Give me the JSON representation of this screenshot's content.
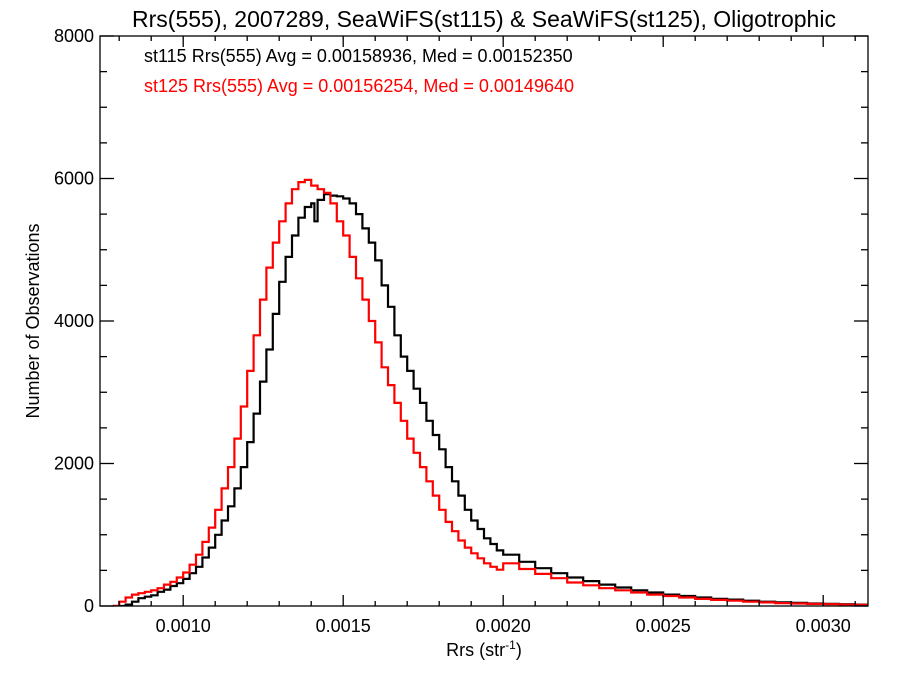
{
  "chart_data": {
    "type": "line",
    "title": "Rrs(555), 2007289, SeaWiFS(st115) & SeaWiFS(st125), Oligotrophic",
    "xlabel_main": "Rrs (str",
    "xlabel_sup": "-1",
    "xlabel_close": ")",
    "ylabel": "Number of Observations",
    "xlim": [
      0.00074,
      0.00314
    ],
    "ylim": [
      0,
      8000
    ],
    "xticks": [
      0.001,
      0.0015,
      0.002,
      0.0025,
      0.003
    ],
    "xtick_labels": [
      "0.0010",
      "0.0015",
      "0.0020",
      "0.0025",
      "0.0030"
    ],
    "yticks": [
      0,
      2000,
      4000,
      6000,
      8000
    ],
    "ytick_labels": [
      "0",
      "2000",
      "4000",
      "6000",
      "8000"
    ],
    "grid": false,
    "step": true,
    "series": [
      {
        "name": "st115",
        "color": "#000000",
        "annotation": "st115 Rrs(555) Avg = 0.00158936, Med = 0.00152350",
        "x": [
          0.00078,
          0.0008,
          0.00082,
          0.00084,
          0.00086,
          0.00088,
          0.0009,
          0.00092,
          0.00094,
          0.00096,
          0.00098,
          0.001,
          0.00102,
          0.00104,
          0.00106,
          0.00108,
          0.0011,
          0.00112,
          0.00114,
          0.00116,
          0.00118,
          0.0012,
          0.00122,
          0.00124,
          0.00126,
          0.00128,
          0.0013,
          0.00132,
          0.00134,
          0.00136,
          0.00138,
          0.0014,
          0.00141,
          0.00142,
          0.00144,
          0.00146,
          0.00148,
          0.0015,
          0.00152,
          0.00154,
          0.00156,
          0.00158,
          0.0016,
          0.00162,
          0.00164,
          0.00166,
          0.00168,
          0.0017,
          0.00172,
          0.00174,
          0.00176,
          0.00178,
          0.0018,
          0.00182,
          0.00184,
          0.00186,
          0.00188,
          0.0019,
          0.00192,
          0.00194,
          0.00196,
          0.00198,
          0.002,
          0.00205,
          0.0021,
          0.00215,
          0.0022,
          0.00225,
          0.0023,
          0.00235,
          0.0024,
          0.00245,
          0.0025,
          0.00255,
          0.0026,
          0.00265,
          0.0027,
          0.00275,
          0.0028,
          0.00285,
          0.0029,
          0.00295,
          0.003,
          0.00305,
          0.0031,
          0.00314
        ],
        "y": [
          0,
          0,
          20,
          60,
          110,
          130,
          150,
          200,
          230,
          280,
          320,
          380,
          460,
          550,
          680,
          820,
          1000,
          1200,
          1400,
          1650,
          1950,
          2300,
          2700,
          3150,
          3600,
          4100,
          4550,
          4900,
          5200,
          5450,
          5600,
          5650,
          5400,
          5700,
          5780,
          5760,
          5750,
          5720,
          5650,
          5500,
          5300,
          5100,
          4850,
          4500,
          4200,
          3800,
          3500,
          3300,
          3050,
          2850,
          2600,
          2400,
          2200,
          1950,
          1750,
          1550,
          1350,
          1200,
          1080,
          950,
          870,
          780,
          720,
          620,
          530,
          460,
          400,
          350,
          300,
          260,
          220,
          190,
          160,
          140,
          120,
          100,
          90,
          75,
          60,
          50,
          45,
          35,
          30,
          25,
          20,
          15
        ]
      },
      {
        "name": "st125",
        "color": "#ff0000",
        "annotation": "st125 Rrs(555) Avg = 0.00156254, Med = 0.00149640",
        "x": [
          0.00078,
          0.0008,
          0.00082,
          0.00084,
          0.00086,
          0.00088,
          0.0009,
          0.00092,
          0.00094,
          0.00096,
          0.00098,
          0.001,
          0.00102,
          0.00104,
          0.00106,
          0.00108,
          0.0011,
          0.00112,
          0.00114,
          0.00116,
          0.00118,
          0.0012,
          0.00122,
          0.00124,
          0.00126,
          0.00128,
          0.0013,
          0.00132,
          0.00134,
          0.00136,
          0.00138,
          0.0014,
          0.00142,
          0.00144,
          0.00146,
          0.00148,
          0.0015,
          0.00152,
          0.00154,
          0.00156,
          0.00158,
          0.0016,
          0.00162,
          0.00164,
          0.00166,
          0.00168,
          0.0017,
          0.00172,
          0.00174,
          0.00176,
          0.00178,
          0.0018,
          0.00182,
          0.00184,
          0.00186,
          0.00188,
          0.0019,
          0.00192,
          0.00194,
          0.00196,
          0.00198,
          0.002,
          0.00205,
          0.0021,
          0.00215,
          0.0022,
          0.00225,
          0.0023,
          0.00235,
          0.0024,
          0.00245,
          0.0025,
          0.00255,
          0.0026,
          0.00265,
          0.0027,
          0.00275,
          0.0028,
          0.00285,
          0.0029,
          0.00295,
          0.003,
          0.00305,
          0.0031,
          0.00314
        ],
        "y": [
          0,
          60,
          120,
          160,
          180,
          200,
          220,
          250,
          300,
          340,
          400,
          470,
          580,
          720,
          900,
          1100,
          1350,
          1650,
          1950,
          2350,
          2800,
          3300,
          3800,
          4300,
          4750,
          5100,
          5400,
          5650,
          5850,
          5950,
          5980,
          5900,
          5850,
          5800,
          5650,
          5400,
          5200,
          4900,
          4600,
          4300,
          4000,
          3700,
          3350,
          3100,
          2850,
          2600,
          2350,
          2150,
          1950,
          1750,
          1550,
          1350,
          1180,
          1050,
          920,
          820,
          740,
          670,
          600,
          550,
          510,
          600,
          520,
          450,
          390,
          330,
          290,
          250,
          220,
          190,
          160,
          140,
          120,
          100,
          85,
          75,
          60,
          50,
          40,
          35,
          30,
          25,
          20,
          15,
          10
        ]
      }
    ]
  }
}
